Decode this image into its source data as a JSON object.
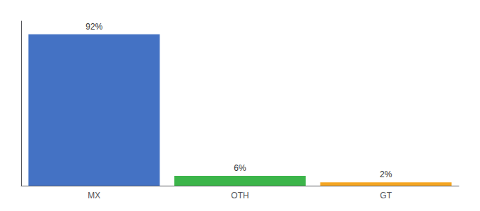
{
  "chart_data": {
    "type": "bar",
    "categories": [
      "MX",
      "OTH",
      "GT"
    ],
    "values": [
      92,
      6,
      2
    ],
    "value_labels": [
      "92%",
      "6%",
      "2%"
    ],
    "colors": [
      "#4472C4",
      "#3CB54A",
      "#F5A623"
    ],
    "ylim": [
      0,
      100
    ],
    "grid": false,
    "tick_labels": "x",
    "data_labels": true
  }
}
